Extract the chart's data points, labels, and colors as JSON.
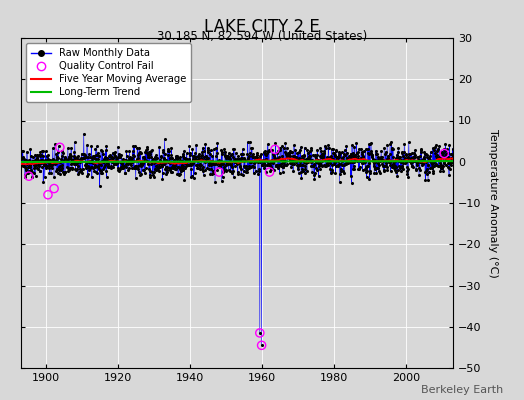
{
  "title": "LAKE CITY 2 E",
  "subtitle": "30.185 N, 82.594 W (United States)",
  "ylabel": "Temperature Anomaly (°C)",
  "watermark": "Berkeley Earth",
  "xlim": [
    1893,
    2013
  ],
  "ylim": [
    -50,
    30
  ],
  "yticks": [
    -50,
    -40,
    -30,
    -20,
    -10,
    0,
    10,
    20,
    30
  ],
  "xticks": [
    1900,
    1920,
    1940,
    1960,
    1980,
    2000
  ],
  "bg_color": "#d8d8d8",
  "plot_bg_color": "#d8d8d8",
  "raw_color": "#0000ff",
  "dot_color": "#000000",
  "moving_avg_color": "#ff0000",
  "trend_color": "#00bb00",
  "qc_fail_color": "#ff00ff",
  "seed": 42,
  "n_points": 1440,
  "start_year": 1893,
  "end_year": 2013,
  "spike1_x": 1959.3,
  "spike1_y": -41.5,
  "spike2_x": 1959.8,
  "spike2_y": -44.5,
  "qc_x": [
    1895.2,
    1900.5,
    1902.2,
    1903.8,
    1948.0,
    1962.0,
    1963.5,
    2010.5
  ],
  "qc_y": [
    -3.5,
    -8.0,
    -6.5,
    3.5,
    -2.5,
    -2.5,
    3.0,
    2.0
  ]
}
